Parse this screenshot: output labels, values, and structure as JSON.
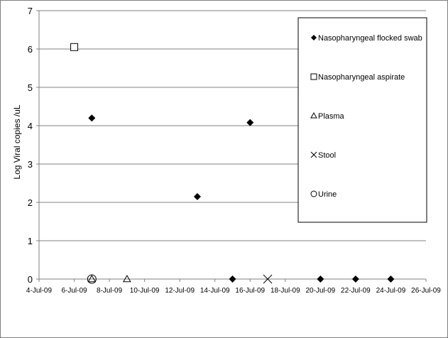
{
  "chart_data": {
    "type": "scatter",
    "title": "",
    "xlabel": "",
    "ylabel": "Log Viral copies /uL",
    "x_ticks": [
      "4-Jul-09",
      "6-Jul-09",
      "8-Jul-09",
      "10-Jul-09",
      "12-Jul-09",
      "14-Jul-09",
      "16-Jul-09",
      "18-Jul-09",
      "20-Jul-09",
      "22-Jul-09",
      "24-Jul-09",
      "26-Jul-09"
    ],
    "y_ticks": [
      "0",
      "1",
      "2",
      "3",
      "4",
      "5",
      "6",
      "7"
    ],
    "xlim": [
      "2009-07-04",
      "2009-07-26"
    ],
    "ylim": [
      0,
      7
    ],
    "grid": "horizontal",
    "legend_position": "right",
    "series": [
      {
        "name": "Nasopharyngeal flocked swab",
        "marker": "diamond",
        "points": [
          {
            "x": "2009-07-07",
            "y": 4.2
          },
          {
            "x": "2009-07-13",
            "y": 2.15
          },
          {
            "x": "2009-07-15",
            "y": 0
          },
          {
            "x": "2009-07-16",
            "y": 4.08
          },
          {
            "x": "2009-07-20",
            "y": 0
          },
          {
            "x": "2009-07-22",
            "y": 0
          },
          {
            "x": "2009-07-24",
            "y": 0
          }
        ]
      },
      {
        "name": "Nasopharyngeal aspirate",
        "marker": "square",
        "points": [
          {
            "x": "2009-07-06",
            "y": 6.05
          }
        ]
      },
      {
        "name": "Plasma",
        "marker": "triangle",
        "points": [
          {
            "x": "2009-07-07",
            "y": 0
          },
          {
            "x": "2009-07-09",
            "y": 0
          }
        ]
      },
      {
        "name": "Stool",
        "marker": "cross",
        "points": [
          {
            "x": "2009-07-17",
            "y": 0
          }
        ]
      },
      {
        "name": "Urine",
        "marker": "circle",
        "points": [
          {
            "x": "2009-07-07",
            "y": 0
          }
        ]
      }
    ]
  }
}
